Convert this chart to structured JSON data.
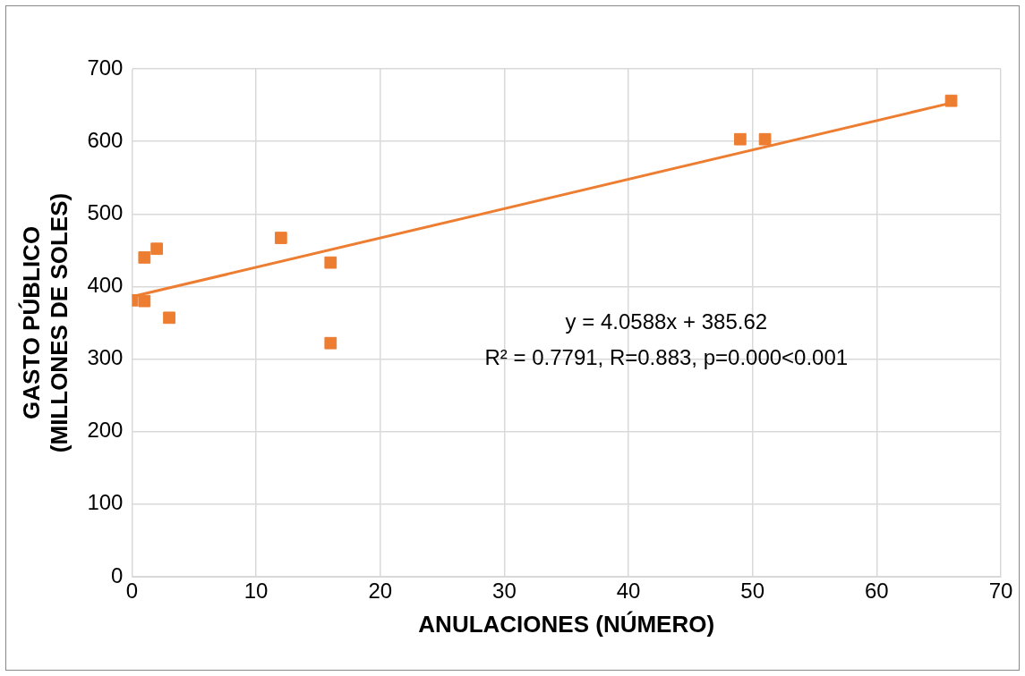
{
  "chart_data": {
    "type": "scatter",
    "xlabel": "ANULACIONES (NÚMERO)",
    "ylabel": "GASTO PÚBLICO (MILLONES DE SOLES)",
    "series": [
      {
        "color": "#ed7d31",
        "marker": "square",
        "x": [
          0,
          1,
          2,
          1,
          3,
          12,
          16,
          16,
          49,
          51,
          66
        ],
        "values": [
          381,
          440,
          452,
          380,
          357,
          467,
          433,
          322,
          603,
          603,
          656
        ]
      },
      {
        "type": "line",
        "color": "#ed7d31",
        "marker": "none",
        "x": [
          0,
          66
        ],
        "values": [
          386,
          653
        ]
      }
    ],
    "xlim": [
      0,
      70
    ],
    "xticks": [
      0,
      10,
      20,
      30,
      40,
      50,
      60,
      70
    ],
    "ylim": [
      0,
      700
    ],
    "yticks": [
      0,
      100,
      200,
      300,
      400,
      500,
      600,
      700
    ],
    "grid": true,
    "legend": false,
    "annotations": [
      "y = 4.0588x + 385.62",
      "R² = 0.7791, R=0.883, p=0.000<0.001"
    ]
  }
}
